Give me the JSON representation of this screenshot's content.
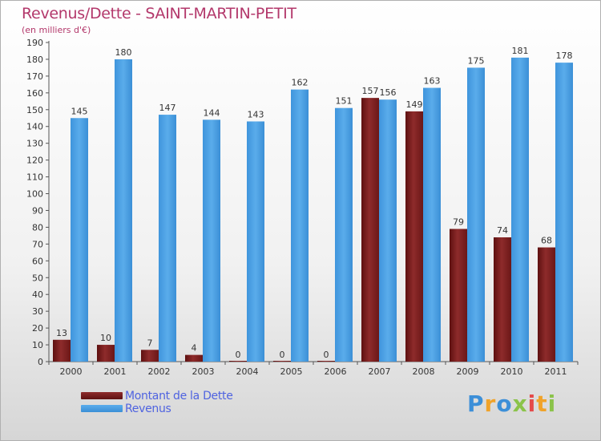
{
  "title": "Revenus/Dette - SAINT-MARTIN-PETIT",
  "subtitle": "(en milliers d'€)",
  "colors": {
    "dette": "#8b2525",
    "revenus": "#4aa0e4",
    "title": "#b3386b",
    "legend_text": "#4f63e0"
  },
  "chart_data": {
    "type": "bar",
    "title": "Revenus/Dette - SAINT-MARTIN-PETIT",
    "ylabel": "",
    "xlabel": "",
    "ylim": [
      0,
      190
    ],
    "yticks": [
      0,
      10,
      20,
      30,
      40,
      50,
      60,
      70,
      80,
      90,
      100,
      110,
      120,
      130,
      140,
      150,
      160,
      170,
      180,
      190
    ],
    "categories": [
      "2000",
      "2001",
      "2002",
      "2003",
      "2004",
      "2005",
      "2006",
      "2007",
      "2008",
      "2009",
      "2010",
      "2011"
    ],
    "series": [
      {
        "name": "Montant de la Dette",
        "values": [
          13,
          10,
          7,
          4,
          0,
          0,
          0,
          157,
          149,
          79,
          74,
          68
        ]
      },
      {
        "name": "Revenus",
        "values": [
          145,
          180,
          147,
          144,
          143,
          162,
          151,
          156,
          163,
          175,
          181,
          178
        ]
      }
    ],
    "grid": false,
    "legend_position": "bottom-left"
  },
  "legend": {
    "items": [
      "Montant de la Dette",
      "Revenus"
    ]
  },
  "logo": {
    "text": "Proxiti"
  }
}
